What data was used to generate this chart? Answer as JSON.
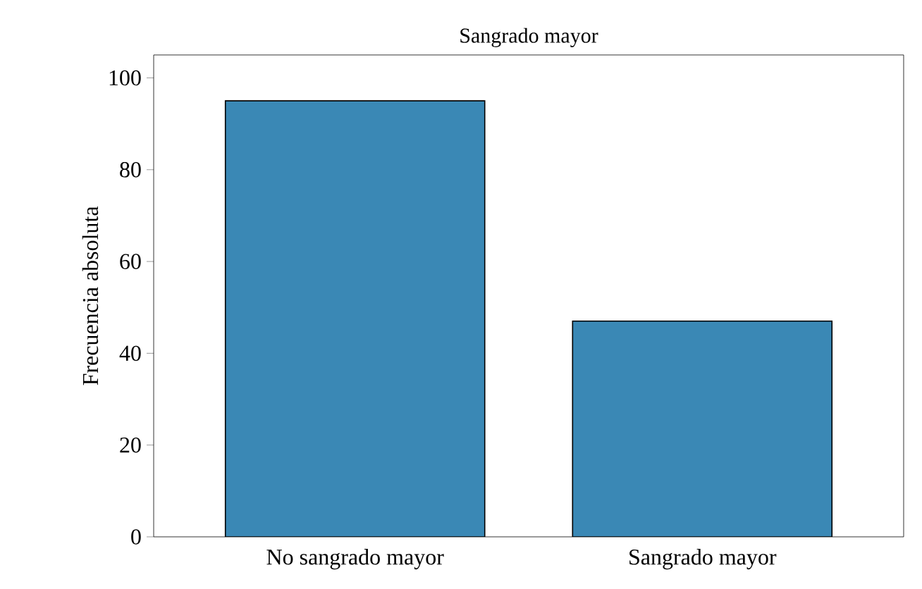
{
  "chart_data": {
    "type": "bar",
    "title": "Sangrado mayor",
    "ylabel": "Frecuencia absoluta",
    "categories": [
      "No sangrado mayor",
      "Sangrado mayor"
    ],
    "values": [
      95,
      47
    ],
    "color": "#3a88b5",
    "ylim": [
      0,
      105
    ],
    "yticks": [
      0,
      20,
      40,
      60,
      80,
      100
    ],
    "grid": false
  }
}
